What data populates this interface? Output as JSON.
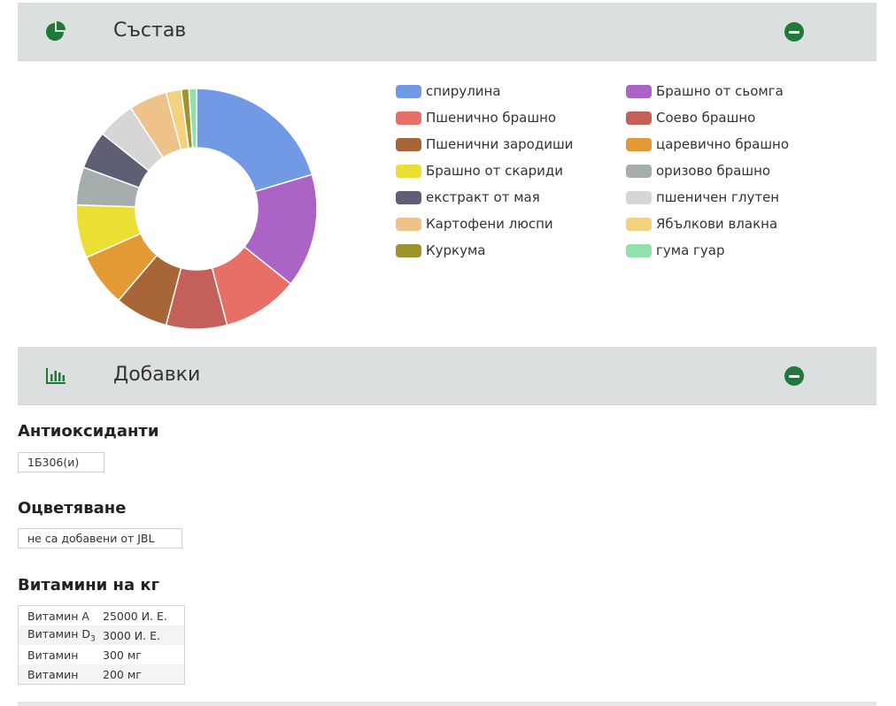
{
  "composition": {
    "title": "Състав",
    "items": [
      {
        "label": "спирулина",
        "color": "#7199e4",
        "value": 20
      },
      {
        "label": "Брашно от сьомга",
        "color": "#ab63c6",
        "value": 15
      },
      {
        "label": "Пшенично брашно",
        "color": "#e86f66",
        "value": 10
      },
      {
        "label": "Соево брашно",
        "color": "#c4605a",
        "value": 8
      },
      {
        "label": "Пшенични зародиши",
        "color": "#a86538",
        "value": 7
      },
      {
        "label": "царевично брашно",
        "color": "#e39a35",
        "value": 7
      },
      {
        "label": "Брашно от скариди",
        "color": "#ebdf34",
        "value": 7
      },
      {
        "label": "оризово брашно",
        "color": "#a5adad",
        "value": 5
      },
      {
        "label": "екстракт от мая",
        "color": "#5e5e75",
        "value": 5
      },
      {
        "label": "пшеничен глутен",
        "color": "#d6d6d6",
        "value": 5
      },
      {
        "label": "Картофени люспи",
        "color": "#efc28b",
        "value": 5
      },
      {
        "label": "Ябълкови влакна",
        "color": "#f2d27e",
        "value": 2
      },
      {
        "label": "Куркума",
        "color": "#9d9430",
        "value": 1
      },
      {
        "label": "гума гуар",
        "color": "#94e0ad",
        "value": 1
      }
    ]
  },
  "additives": {
    "title": "Добавки",
    "antioxidants": {
      "title": "Антиоксиданти",
      "value": "1Б306(и)"
    },
    "coloring": {
      "title": "Оцветяване",
      "value": "не са добавени от JBL"
    },
    "vitamins": {
      "title": "Витамини на кг",
      "rows": [
        {
          "name": "Витамин А",
          "sub": "",
          "value": "25000 И. Е."
        },
        {
          "name": "Витамин D",
          "sub": "3",
          "value": "3000 И. Е."
        },
        {
          "name": "Витамин",
          "sub": "",
          "value": "300 мг"
        },
        {
          "name": "Витамин",
          "sub": "",
          "value": "200 мг"
        }
      ]
    }
  },
  "icons": {
    "composition": "pie-chart-icon",
    "additives": "bar-chart-icon",
    "collapse": "minus-circle-icon"
  },
  "accent_color": "#1f7a3a"
}
